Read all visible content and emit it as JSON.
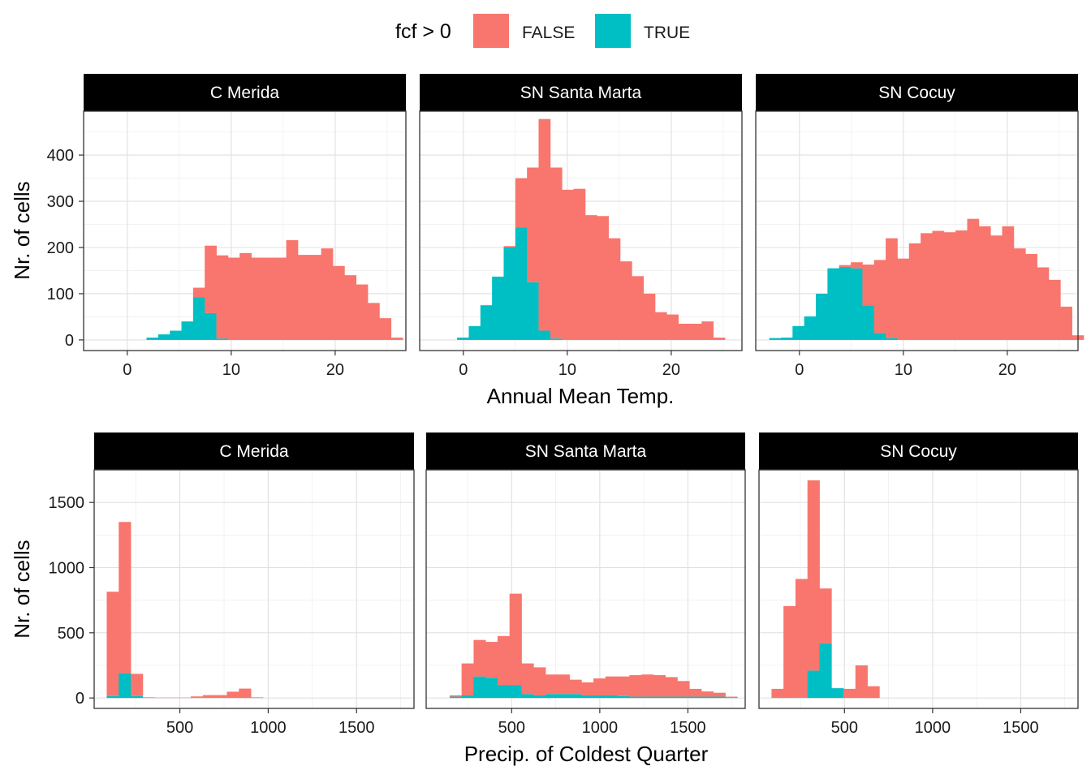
{
  "legend": {
    "title": "fcf > 0",
    "items": [
      {
        "label": "FALSE",
        "color": "#F8766D"
      },
      {
        "label": "TRUE",
        "color": "#00BFC4"
      }
    ]
  },
  "colors": {
    "false": "#F8766D",
    "true": "#00BFC4",
    "strip": "#000000",
    "grid": "#ebebeb"
  },
  "chart_data": [
    {
      "type": "bar",
      "stacked": true,
      "xlabel": "Annual Mean Temp.",
      "ylabel": "Nr. of cells",
      "xlim": [
        -4.2,
        26.8
      ],
      "ylim": [
        -23,
        495
      ],
      "xticks": [
        0,
        10,
        20
      ],
      "yticks": [
        0,
        100,
        200,
        300,
        400
      ],
      "bin_width": 1.12,
      "panels": [
        {
          "title": "C Merida",
          "bins_start": 1.85,
          "true": [
            5,
            12,
            20,
            40,
            92,
            58,
            3,
            0,
            0,
            0,
            0,
            0,
            0,
            0,
            0,
            0,
            0,
            0,
            0,
            0,
            0,
            0
          ],
          "false": [
            0,
            0,
            0,
            0,
            21,
            146,
            180,
            178,
            188,
            178,
            178,
            178,
            216,
            184,
            184,
            198,
            160,
            140,
            120,
            80,
            47,
            5
          ]
        },
        {
          "title": "SN Santa Marta",
          "bins_start": -0.6,
          "true": [
            5,
            30,
            75,
            137,
            200,
            243,
            125,
            20,
            3,
            0,
            0,
            0,
            0,
            0,
            0,
            0,
            0,
            0,
            0,
            0,
            0,
            0,
            0
          ],
          "false": [
            0,
            0,
            0,
            0,
            3,
            107,
            248,
            458,
            370,
            325,
            327,
            270,
            268,
            220,
            170,
            138,
            100,
            60,
            55,
            35,
            35,
            40,
            5
          ]
        },
        {
          "title": "SN Cocuy",
          "bins_start": -2.9,
          "true": [
            4,
            5,
            30,
            51,
            100,
            155,
            158,
            155,
            75,
            15,
            4,
            0,
            0,
            0,
            0,
            0,
            0,
            0,
            0,
            0,
            0,
            0,
            0,
            0,
            0,
            0,
            0
          ],
          "false": [
            0,
            0,
            0,
            0,
            0,
            0,
            4,
            13,
            88,
            158,
            216,
            176,
            209,
            231,
            236,
            233,
            237,
            262,
            246,
            226,
            246,
            198,
            186,
            157,
            130,
            72,
            10
          ]
        }
      ]
    },
    {
      "type": "bar",
      "stacked": true,
      "xlabel": "Precip. of Coldest Quarter",
      "ylabel": "Nr. of cells",
      "xlim": [
        15,
        1825
      ],
      "ylim": [
        -80,
        1750
      ],
      "xticks": [
        500,
        1000,
        1500
      ],
      "yticks": [
        0,
        500,
        1000,
        1500
      ],
      "bin_width": 68,
      "panels": [
        {
          "title": "C Merida",
          "bins_start": 86,
          "true": [
            15,
            190,
            15,
            0,
            0,
            0,
            0,
            0,
            0,
            0,
            0,
            0,
            0
          ],
          "false": [
            800,
            1160,
            170,
            5,
            3,
            3,
            3,
            12,
            22,
            22,
            48,
            72,
            5
          ]
        },
        {
          "title": "SN Santa Marta",
          "bins_start": 148,
          "true": [
            10,
            20,
            165,
            155,
            100,
            100,
            30,
            20,
            30,
            30,
            30,
            20,
            20,
            20,
            15,
            10,
            10,
            10,
            10,
            10,
            10,
            10,
            10,
            5
          ],
          "false": [
            10,
            245,
            280,
            275,
            375,
            700,
            235,
            215,
            150,
            150,
            110,
            100,
            130,
            145,
            150,
            165,
            170,
            165,
            150,
            120,
            60,
            40,
            30,
            5
          ]
        },
        {
          "title": "SN Cocuy",
          "bins_start": 86,
          "true": [
            0,
            0,
            3,
            210,
            420,
            75,
            0,
            0,
            0
          ],
          "false": [
            70,
            705,
            910,
            1460,
            420,
            0,
            70,
            250,
            90
          ]
        }
      ]
    }
  ]
}
